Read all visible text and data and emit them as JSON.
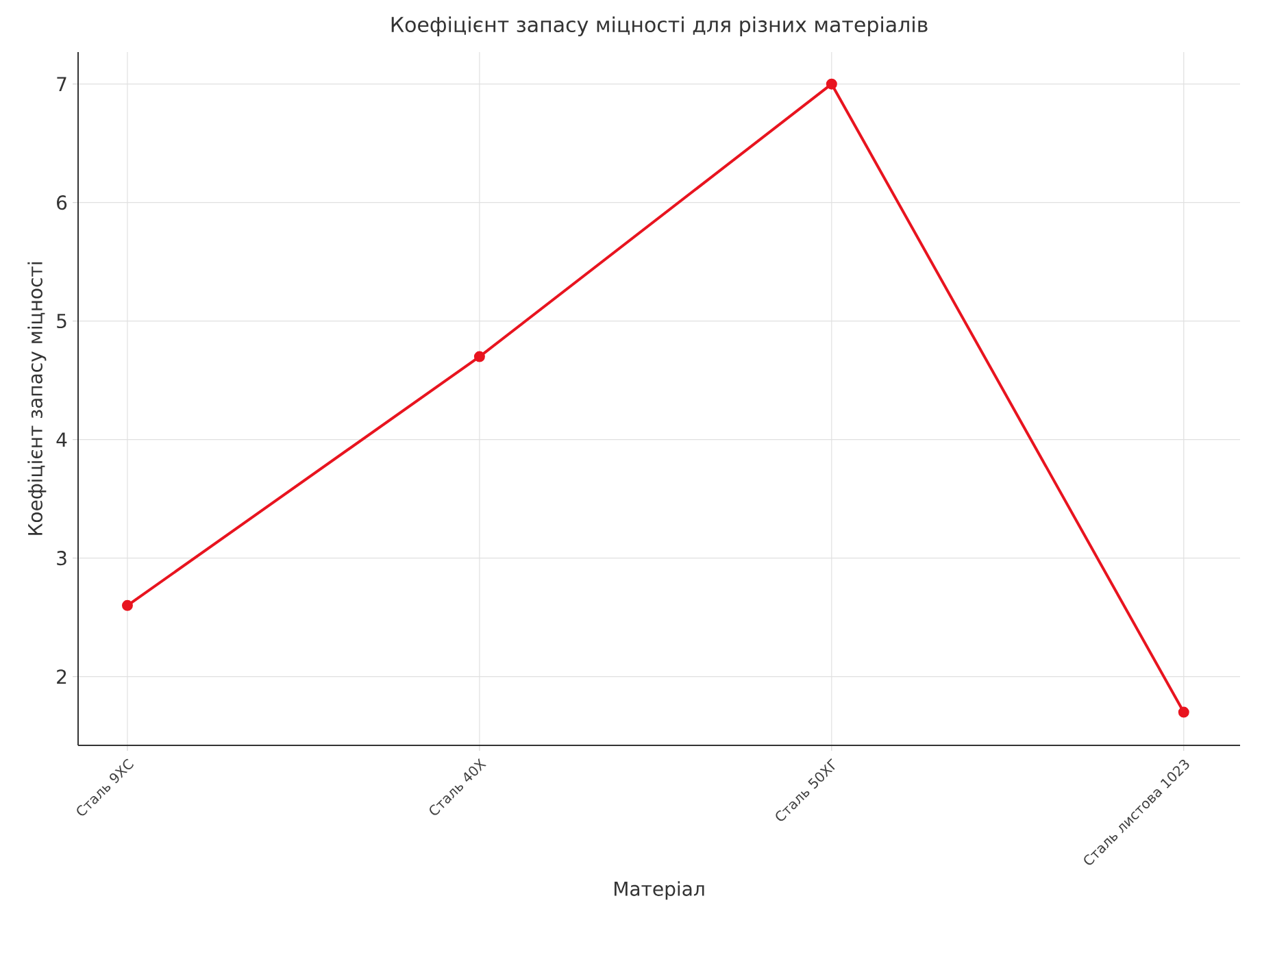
{
  "chart_data": {
    "type": "line",
    "title": "Коефіцієнт запасу міцності для різних матеріалів",
    "xlabel": "Матеріал",
    "ylabel": "Коефіцієнт запасу міцності",
    "categories": [
      "Сталь 9ХС",
      "Сталь 40Х",
      "Сталь 50ХГ",
      "Сталь листова 1023"
    ],
    "series": [
      {
        "color": "#e8141f",
        "values": [
          2.6,
          4.7,
          7.0,
          1.7
        ]
      }
    ],
    "ylim": [
      1.42,
      7.27
    ],
    "yticks": [
      2,
      3,
      4,
      5,
      6,
      7
    ],
    "grid": true,
    "marker": "circle",
    "line_style": "solid"
  }
}
